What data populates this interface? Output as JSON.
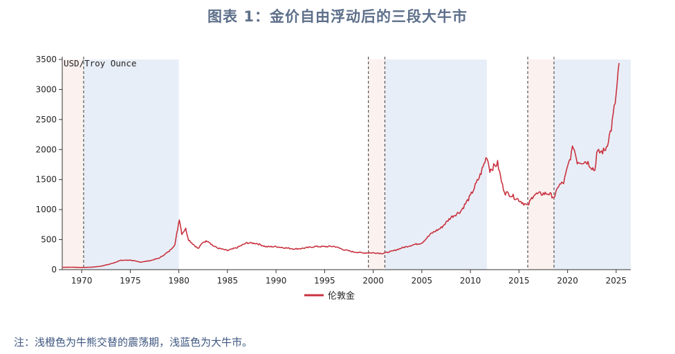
{
  "chart_data": {
    "type": "line",
    "title": "图表 1：金价自由浮动后的三段大牛市",
    "unit_label": "USD/Troy Ounce",
    "note": "注：浅橙色为牛熊交替的震荡期，浅蓝色为大牛市。",
    "xlim": [
      1968,
      2026.5
    ],
    "ylim": [
      0,
      3500
    ],
    "x_ticks": [
      1970,
      1975,
      1980,
      1985,
      1990,
      1995,
      2000,
      2005,
      2010,
      2015,
      2020,
      2025
    ],
    "y_ticks": [
      0,
      500,
      1000,
      1500,
      2000,
      2500,
      3000,
      3500
    ],
    "legend": {
      "position": "bottom-center"
    },
    "series": [
      {
        "name": "伦敦金",
        "color": "#c8313e",
        "x": [
          1968,
          1969,
          1970,
          1971,
          1972,
          1973,
          1974,
          1975,
          1976,
          1977,
          1978,
          1979,
          1979.6,
          1980.05,
          1980.3,
          1980.7,
          1981,
          1981.5,
          1982,
          1982.5,
          1983,
          1983.5,
          1984,
          1985,
          1986,
          1987,
          1988,
          1989,
          1990,
          1991,
          1992,
          1993,
          1994,
          1995,
          1996,
          1997,
          1998,
          1999,
          2000,
          2001,
          2002,
          2003,
          2004,
          2005,
          2006,
          2007,
          2008,
          2009,
          2010,
          2011,
          2011.7,
          2012,
          2012.8,
          2013.3,
          2013.6,
          2014,
          2015,
          2015.9,
          2016.5,
          2017,
          2018,
          2018.7,
          2019,
          2019.6,
          2020,
          2020.6,
          2021,
          2022,
          2022.8,
          2023,
          2023.8,
          2024,
          2024.5,
          2025,
          2025.3
        ],
        "values": [
          39,
          41,
          36,
          41,
          58,
          97,
          154,
          160,
          125,
          148,
          194,
          306,
          420,
          850,
          600,
          680,
          500,
          420,
          350,
          460,
          480,
          400,
          360,
          317,
          368,
          447,
          437,
          381,
          384,
          362,
          344,
          360,
          385,
          384,
          388,
          331,
          294,
          279,
          280,
          271,
          310,
          364,
          410,
          445,
          604,
          697,
          872,
          972,
          1225,
          1570,
          1895,
          1660,
          1770,
          1400,
          1280,
          1260,
          1160,
          1060,
          1250,
          1260,
          1270,
          1200,
          1390,
          1450,
          1700,
          2060,
          1800,
          1800,
          1650,
          1940,
          1980,
          2050,
          2350,
          2900,
          3440
        ]
      }
    ],
    "bands": [
      {
        "type": "consolidation",
        "color": "#fbf1ef",
        "from": 1968,
        "to": 1970.2
      },
      {
        "type": "bull",
        "color": "#e8eef7",
        "from": 1970.2,
        "to": 1980.0
      },
      {
        "type": "consolidation",
        "color": "#fbf1ef",
        "from": 1999.5,
        "to": 2001.2
      },
      {
        "type": "bull",
        "color": "#e8eef7",
        "from": 2001.2,
        "to": 2011.7
      },
      {
        "type": "consolidation",
        "color": "#fbf1ef",
        "from": 2015.9,
        "to": 2018.6
      },
      {
        "type": "bull",
        "color": "#e8eef7",
        "from": 2018.6,
        "to": 2026.5
      }
    ],
    "dashed_lines": [
      1970.2,
      1999.5,
      2001.2,
      2015.9,
      2018.6
    ]
  }
}
